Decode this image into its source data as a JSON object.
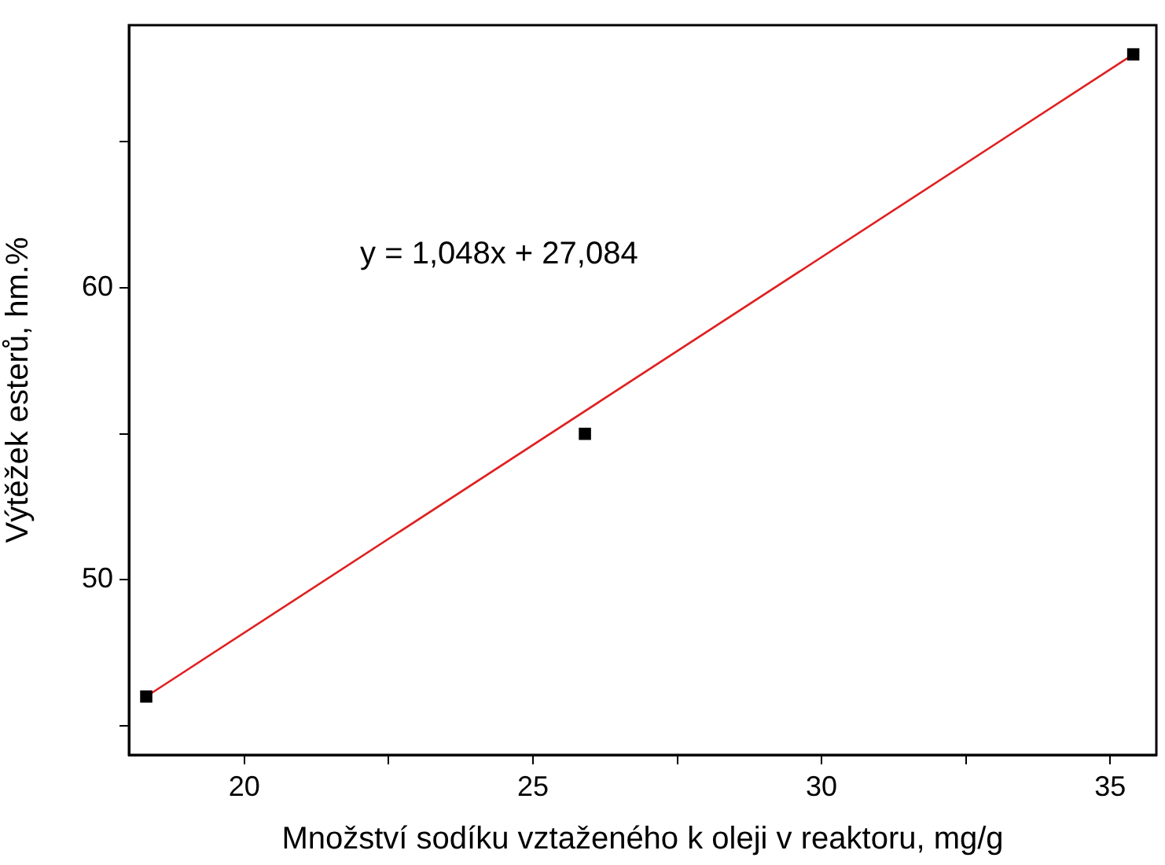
{
  "chart_data": {
    "type": "scatter",
    "xlabel": "Množství sodíku vztaženého k oleji v reaktoru, mg/g",
    "ylabel": "Výtěžek esterů, hm.%",
    "annotations": [
      "y = 1,048x + 27,084"
    ],
    "xlim": [
      18,
      35.8
    ],
    "ylim": [
      44,
      69
    ],
    "xticks": [
      20,
      {
        "value": 22.5,
        "label": null
      },
      25,
      {
        "value": 27.5,
        "label": null
      },
      30,
      {
        "value": 32.5,
        "label": null
      },
      35
    ],
    "yticks": [
      {
        "value": 45,
        "label": null
      },
      50,
      {
        "value": 55,
        "label": null
      },
      60,
      {
        "value": 65,
        "label": null
      }
    ],
    "grid": false,
    "legend": false,
    "series": [
      {
        "color": "#000000",
        "marker": "square",
        "x": [
          18.3,
          25.9,
          35.4
        ],
        "values": [
          46,
          55,
          68
        ]
      },
      {
        "type": "line",
        "color": "#e02020",
        "marker": "none",
        "line_style": "solid",
        "x": [
          18.3,
          35.4
        ],
        "values": [
          46,
          68
        ]
      }
    ]
  }
}
